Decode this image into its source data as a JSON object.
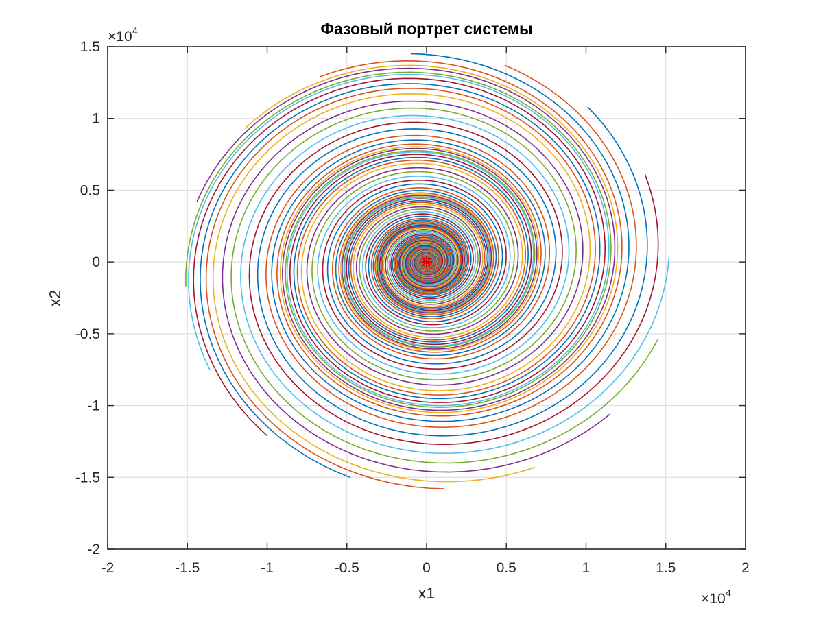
{
  "chart_data": {
    "type": "line",
    "title": "Фазовый портрет системы",
    "xlabel": "x1",
    "ylabel": "x2",
    "xlim": [
      -20000,
      20000
    ],
    "ylim": [
      -20000,
      15000
    ],
    "x_ticks": [
      -20000,
      -15000,
      -10000,
      -5000,
      0,
      5000,
      10000,
      15000,
      20000
    ],
    "x_tick_labels": [
      "-2",
      "-1.5",
      "-1",
      "-0.5",
      "0",
      "0.5",
      "1",
      "1.5",
      "2"
    ],
    "y_ticks": [
      -20000,
      -15000,
      -10000,
      -5000,
      0,
      5000,
      10000,
      15000
    ],
    "y_tick_labels": [
      "-2",
      "-1.5",
      "-1",
      "-0.5",
      "0",
      "0.5",
      "1",
      "1.5"
    ],
    "x_exponent": {
      "base": "×10",
      "power": "4"
    },
    "y_exponent": {
      "base": "×10",
      "power": "4"
    },
    "grid": true,
    "equilibrium_marker": {
      "x": 0,
      "y": 0,
      "symbol": "*",
      "color": "#e60000"
    },
    "spiral": {
      "decay_per_radian": 0.085,
      "direction": "clockwise-inward"
    },
    "series_colors": [
      "#0072bd",
      "#d95319",
      "#edb120",
      "#7e2f8e",
      "#77ac30",
      "#4dbeee",
      "#a2142f"
    ],
    "trajectories": [
      {
        "start": [
          -1000,
          14500
        ]
      },
      {
        "start": [
          -6700,
          12900
        ]
      },
      {
        "start": [
          -11400,
          9300
        ]
      },
      {
        "start": [
          -14400,
          4200
        ]
      },
      {
        "start": [
          -15100,
          -1700
        ]
      },
      {
        "start": [
          -13600,
          -7500
        ]
      },
      {
        "start": [
          -10000,
          -12100
        ]
      },
      {
        "start": [
          -4800,
          -15000
        ]
      },
      {
        "start": [
          1100,
          -15800
        ]
      },
      {
        "start": [
          6800,
          -14300
        ]
      },
      {
        "start": [
          11500,
          -10600
        ]
      },
      {
        "start": [
          14500,
          -5400
        ]
      },
      {
        "start": [
          15200,
          300
        ]
      },
      {
        "start": [
          13700,
          6100
        ]
      },
      {
        "start": [
          10100,
          10800
        ]
      },
      {
        "start": [
          4900,
          13700
        ]
      }
    ]
  }
}
